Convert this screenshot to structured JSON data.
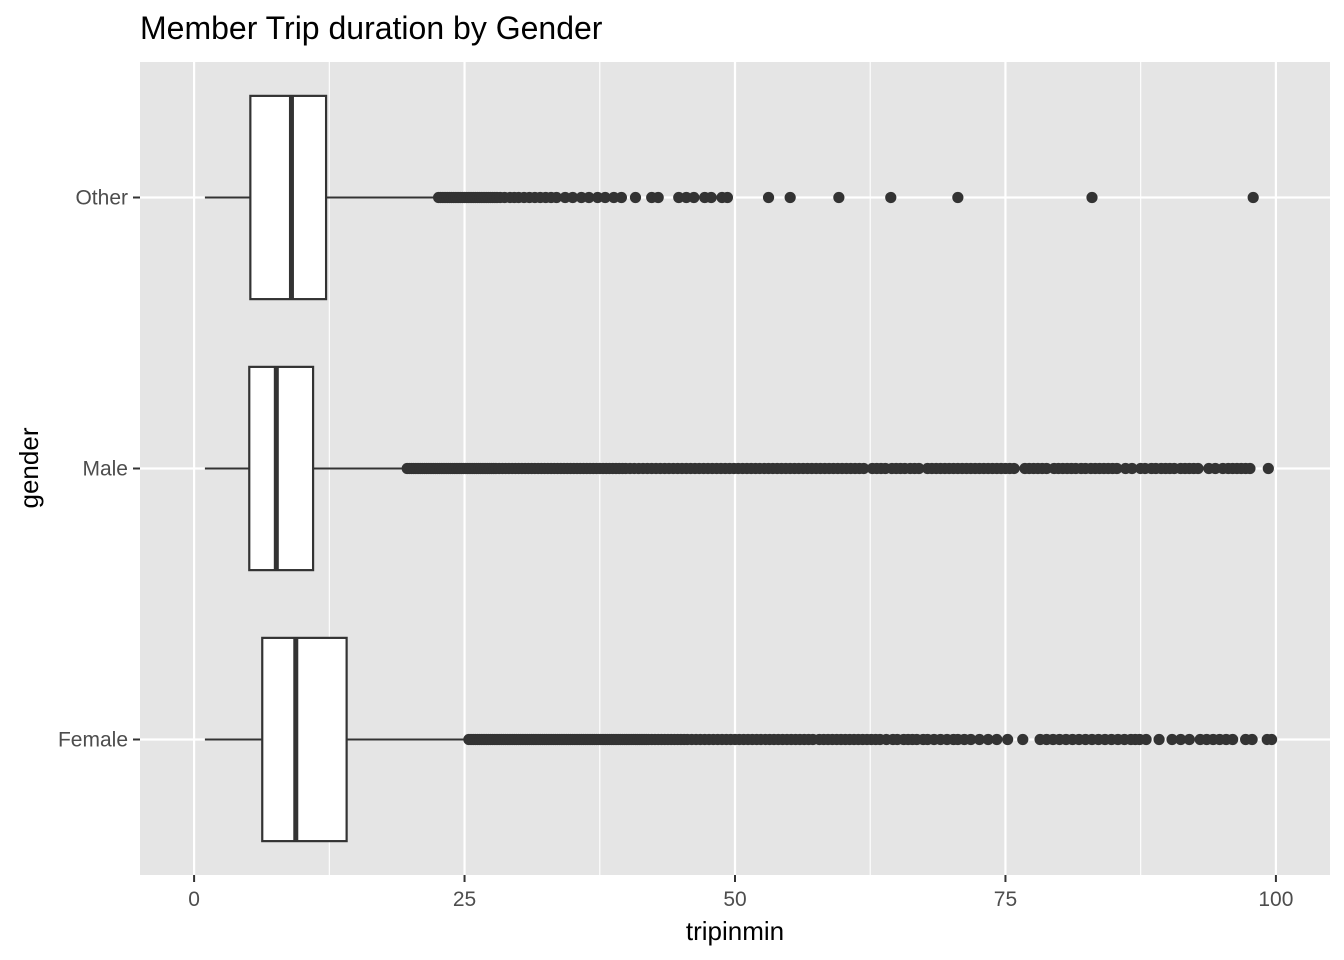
{
  "chart_data": {
    "type": "boxplot",
    "orientation": "horizontal",
    "title": "Member Trip duration by Gender",
    "xlabel": "tripinmin",
    "ylabel": "gender",
    "xlim": [
      -5,
      105
    ],
    "x_ticks": [
      0,
      25,
      50,
      75,
      100
    ],
    "x_tick_labels": [
      "0",
      "25",
      "50",
      "75",
      "100"
    ],
    "grid": true,
    "colors": {
      "panel_background": "#e5e5e5",
      "grid_major": "#ffffff",
      "box_fill": "#ffffff",
      "box_line": "#333333",
      "outlier": "#333333",
      "tick_label": "#4d4d4d"
    },
    "categories": [
      "Other",
      "Male",
      "Female"
    ],
    "series": [
      {
        "category": "Other",
        "whisker_low": 1.0,
        "q1": 5.2,
        "median": 9.0,
        "q3": 12.2,
        "whisker_high": 22.5,
        "outliers": [
          22.6,
          22.8,
          23.0,
          23.2,
          23.4,
          23.6,
          23.8,
          24.0,
          24.2,
          24.4,
          24.6,
          24.8,
          25.0,
          25.2,
          25.4,
          25.6,
          25.8,
          26.0,
          26.2,
          26.4,
          26.6,
          26.8,
          27.0,
          27.2,
          27.4,
          27.6,
          27.8,
          28.0,
          28.3,
          28.7,
          29.2,
          29.6,
          30.0,
          30.5,
          31.0,
          31.5,
          32.0,
          32.5,
          33.0,
          33.5,
          34.3,
          35.0,
          35.8,
          36.5,
          37.3,
          38.0,
          38.8,
          39.5,
          40.8,
          42.3,
          42.9,
          44.8,
          45.5,
          46.2,
          47.2,
          47.8,
          48.8,
          49.3,
          53.1,
          55.1,
          59.6,
          64.4,
          70.6,
          83.0,
          97.9
        ]
      },
      {
        "category": "Male",
        "whisker_low": 1.0,
        "q1": 5.1,
        "median": 7.6,
        "q3": 11.0,
        "whisker_high": 19.6,
        "outliers": [
          19.7,
          19.9,
          20.1,
          20.3,
          20.5,
          20.7,
          20.9,
          21.1,
          21.3,
          21.5,
          21.7,
          21.9,
          22.1,
          22.3,
          22.5,
          22.7,
          22.9,
          23.1,
          23.3,
          23.5,
          23.7,
          23.9,
          24.1,
          24.3,
          24.5,
          24.7,
          24.9,
          25.1,
          25.3,
          25.5,
          25.7,
          25.9,
          26.1,
          26.3,
          26.5,
          26.7,
          26.9,
          27.1,
          27.3,
          27.5,
          27.7,
          27.9,
          28.2,
          28.5,
          28.8,
          29.1,
          29.4,
          29.7,
          30.0,
          30.3,
          30.6,
          30.9,
          31.2,
          31.5,
          31.8,
          32.1,
          32.4,
          32.7,
          33.0,
          33.3,
          33.6,
          33.9,
          34.2,
          34.5,
          34.8,
          35.1,
          35.4,
          35.7,
          36.0,
          36.3,
          36.6,
          36.9,
          37.2,
          37.5,
          37.8,
          38.1,
          38.4,
          38.7,
          39.0,
          39.3,
          39.6,
          39.9,
          40.3,
          40.7,
          41.1,
          41.5,
          41.9,
          42.3,
          42.7,
          43.1,
          43.5,
          43.9,
          44.3,
          44.7,
          45.1,
          45.5,
          45.9,
          46.3,
          46.7,
          47.1,
          47.5,
          47.9,
          48.3,
          48.7,
          49.1,
          49.5,
          49.9,
          50.3,
          50.7,
          51.1,
          51.5,
          51.9,
          52.3,
          52.7,
          53.1,
          53.5,
          53.9,
          54.3,
          54.7,
          55.1,
          55.5,
          55.9,
          56.3,
          56.7,
          57.1,
          57.5,
          57.9,
          58.3,
          58.7,
          59.1,
          59.5,
          59.9,
          60.3,
          60.7,
          61.1,
          61.5,
          61.9,
          62.7,
          63.1,
          63.5,
          63.9,
          64.5,
          64.9,
          65.3,
          65.7,
          66.2,
          66.6,
          67.0,
          67.8,
          68.2,
          68.6,
          69.0,
          69.4,
          69.8,
          70.2,
          70.6,
          71.0,
          71.4,
          71.8,
          72.2,
          72.6,
          73.0,
          73.4,
          73.8,
          74.2,
          74.6,
          75.0,
          75.4,
          75.8,
          76.8,
          77.2,
          77.6,
          78.0,
          78.4,
          78.8,
          79.5,
          79.9,
          80.3,
          80.7,
          81.1,
          81.5,
          82.0,
          82.4,
          82.9,
          83.3,
          83.7,
          84.1,
          84.5,
          84.9,
          85.3,
          86.1,
          86.7,
          87.5,
          87.9,
          88.5,
          88.9,
          89.4,
          89.8,
          90.2,
          90.6,
          91.2,
          91.6,
          92.0,
          92.4,
          92.8,
          93.8,
          94.4,
          95.1,
          95.6,
          96.0,
          96.4,
          96.8,
          97.2,
          97.6,
          99.3
        ]
      },
      {
        "category": "Female",
        "whisker_low": 1.0,
        "q1": 6.3,
        "median": 9.4,
        "q3": 14.1,
        "whisker_high": 25.3,
        "outliers": [
          25.4,
          25.6,
          25.8,
          26.0,
          26.2,
          26.4,
          26.6,
          26.8,
          27.0,
          27.2,
          27.4,
          27.6,
          27.8,
          28.0,
          28.2,
          28.4,
          28.6,
          28.8,
          29.0,
          29.2,
          29.4,
          29.6,
          29.8,
          30.0,
          30.2,
          30.4,
          30.6,
          30.8,
          31.0,
          31.2,
          31.4,
          31.6,
          31.8,
          32.0,
          32.2,
          32.4,
          32.6,
          32.8,
          33.0,
          33.2,
          33.4,
          33.6,
          33.8,
          34.0,
          34.2,
          34.4,
          34.6,
          34.8,
          35.0,
          35.2,
          35.4,
          35.6,
          35.8,
          36.0,
          36.2,
          36.4,
          36.6,
          36.8,
          37.0,
          37.2,
          37.4,
          37.6,
          37.8,
          38.0,
          38.2,
          38.4,
          38.6,
          38.8,
          39.0,
          39.2,
          39.4,
          39.6,
          39.8,
          40.0,
          40.2,
          40.4,
          40.6,
          40.8,
          41.0,
          41.2,
          41.4,
          41.6,
          41.8,
          42.0,
          42.3,
          42.6,
          42.9,
          43.2,
          43.5,
          43.8,
          44.1,
          44.4,
          44.7,
          45.0,
          45.3,
          45.6,
          46.0,
          46.4,
          46.8,
          47.2,
          47.6,
          48.0,
          48.4,
          48.8,
          49.2,
          49.6,
          50.0,
          50.4,
          50.8,
          51.2,
          51.6,
          52.0,
          52.4,
          52.8,
          53.2,
          53.6,
          54.0,
          54.4,
          54.8,
          55.2,
          55.6,
          56.0,
          56.4,
          56.8,
          57.2,
          57.8,
          58.2,
          58.6,
          59.0,
          59.4,
          59.8,
          60.2,
          60.6,
          61.0,
          61.4,
          61.8,
          62.2,
          62.6,
          63.0,
          63.4,
          64.0,
          64.6,
          65.0,
          65.6,
          66.0,
          66.4,
          66.8,
          67.4,
          67.8,
          68.4,
          69.0,
          69.6,
          70.2,
          70.6,
          71.2,
          71.8,
          72.6,
          73.4,
          74.2,
          75.2,
          76.6,
          78.2,
          78.8,
          79.4,
          80.0,
          80.6,
          81.2,
          81.8,
          82.4,
          83.0,
          83.6,
          84.2,
          84.8,
          85.4,
          86.0,
          86.6,
          87.0,
          87.4,
          88.0,
          89.2,
          90.4,
          91.2,
          92.0,
          93.0,
          93.6,
          94.2,
          94.8,
          95.4,
          96.0,
          97.2,
          97.8,
          99.2,
          99.6
        ]
      }
    ]
  }
}
